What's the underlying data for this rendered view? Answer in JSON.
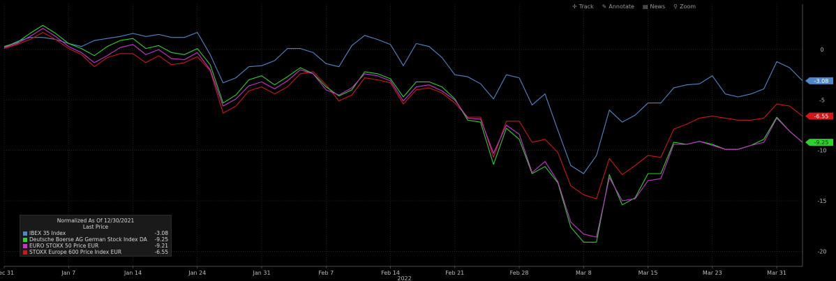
{
  "toolbar": {
    "items": [
      {
        "label": "Track",
        "icon": "crosshair-icon"
      },
      {
        "label": "Annotate",
        "icon": "pencil-icon"
      },
      {
        "label": "News",
        "icon": "news-icon"
      },
      {
        "label": "Zoom",
        "icon": "magnifier-icon"
      }
    ]
  },
  "legend": {
    "title": "Normalized As Of 12/30/2021",
    "subtitle": "Last Price"
  },
  "chart_data": {
    "type": "line",
    "xlabel": "2022",
    "ylabel": "",
    "ylim": [
      -21.5,
      4.5
    ],
    "yticks": [
      0,
      -5,
      -10,
      -15,
      -20
    ],
    "grid": true,
    "legend_position": "bottom-left",
    "x_ticks": [
      {
        "i": 0,
        "label": "Dec 31"
      },
      {
        "i": 5,
        "label": "Jan 7"
      },
      {
        "i": 10,
        "label": "Jan 14"
      },
      {
        "i": 15,
        "label": "Jan 24"
      },
      {
        "i": 20,
        "label": "Jan 31"
      },
      {
        "i": 25,
        "label": "Feb 7"
      },
      {
        "i": 30,
        "label": "Feb 14"
      },
      {
        "i": 35,
        "label": "Feb 21"
      },
      {
        "i": 40,
        "label": "Feb 28"
      },
      {
        "i": 45,
        "label": "Mar 8"
      },
      {
        "i": 50,
        "label": "Mar 15"
      },
      {
        "i": 55,
        "label": "Mar 23"
      },
      {
        "i": 60,
        "label": "Mar 31"
      }
    ],
    "series": [
      {
        "name": "IBEX 35 Index",
        "last": "-3.08",
        "color": "#4f87c9",
        "values": [
          0.2,
          0.8,
          1.2,
          1.2,
          1.0,
          0.6,
          0.3,
          0.9,
          1.1,
          1.3,
          1.6,
          1.3,
          1.5,
          1.2,
          1.2,
          1.7,
          -0.5,
          -3.3,
          -2.8,
          -1.7,
          -1.6,
          -1.1,
          0.1,
          0.1,
          -0.3,
          -1.4,
          -1.7,
          0.4,
          1.4,
          1.0,
          0.5,
          -1.6,
          0.6,
          0.3,
          -0.8,
          -2.5,
          -2.7,
          -3.4,
          -4.9,
          -2.5,
          -2.8,
          -5.5,
          -4.4,
          -8.0,
          -11.5,
          -12.3,
          -10.5,
          -6.0,
          -7.2,
          -6.5,
          -5.3,
          -5.3,
          -3.8,
          -3.5,
          -3.4,
          -2.6,
          -4.4,
          -4.7,
          -4.4,
          -3.9,
          -1.2,
          -1.8,
          -3.1
        ]
      },
      {
        "name": "Deutsche Boerse AG German Stock Index DAX",
        "last": "-9.25",
        "color": "#2ed12e",
        "values": [
          0.3,
          0.7,
          1.6,
          2.4,
          1.6,
          0.6,
          0.1,
          -0.6,
          0.3,
          0.9,
          1.1,
          0.1,
          0.4,
          -0.3,
          -0.5,
          0.1,
          -1.5,
          -5.3,
          -4.5,
          -3.0,
          -2.6,
          -3.5,
          -2.7,
          -1.8,
          -2.4,
          -3.7,
          -4.6,
          -4.0,
          -2.2,
          -2.4,
          -2.9,
          -4.7,
          -3.2,
          -3.2,
          -3.7,
          -4.9,
          -7.0,
          -7.2,
          -11.4,
          -7.8,
          -8.9,
          -12.3,
          -11.6,
          -13.2,
          -17.6,
          -19.1,
          -19.1,
          -12.4,
          -15.4,
          -14.7,
          -12.3,
          -12.3,
          -9.2,
          -9.4,
          -9.1,
          -9.4,
          -9.9,
          -9.9,
          -9.5,
          -8.9,
          -6.7,
          -8.1,
          -9.2
        ]
      },
      {
        "name": "EURO STOXX 50 Price EUR",
        "last": "-9.21",
        "color": "#c736d1",
        "values": [
          0.2,
          0.6,
          1.3,
          2.1,
          1.3,
          0.3,
          -0.3,
          -1.3,
          -0.6,
          0.2,
          0.5,
          -0.5,
          0.0,
          -0.9,
          -1.0,
          -0.3,
          -2.0,
          -5.6,
          -4.9,
          -3.6,
          -3.2,
          -3.9,
          -3.1,
          -2.0,
          -2.4,
          -4.0,
          -4.5,
          -3.8,
          -2.4,
          -2.6,
          -3.1,
          -5.1,
          -3.7,
          -3.5,
          -4.1,
          -5.0,
          -6.8,
          -6.9,
          -10.3,
          -7.5,
          -8.4,
          -12.2,
          -11.1,
          -13.1,
          -17.1,
          -18.3,
          -18.6,
          -12.7,
          -15.0,
          -14.8,
          -13.0,
          -12.8,
          -9.4,
          -9.4,
          -9.1,
          -9.5,
          -9.9,
          -9.9,
          -9.5,
          -9.2,
          -6.8,
          -8.1,
          -9.2
        ]
      },
      {
        "name": "STOXX Europe 600 Price Index EUR",
        "last": "-6.55",
        "color": "#d01818",
        "values": [
          0.1,
          0.5,
          1.0,
          1.7,
          1.0,
          0.1,
          -0.5,
          -1.7,
          -0.8,
          -0.4,
          -0.4,
          -1.3,
          -0.6,
          -1.5,
          -1.3,
          -0.7,
          -2.1,
          -6.3,
          -5.6,
          -4.1,
          -3.7,
          -4.4,
          -3.7,
          -2.4,
          -2.2,
          -3.5,
          -5.1,
          -4.5,
          -2.8,
          -3.0,
          -3.3,
          -5.4,
          -4.0,
          -3.8,
          -4.3,
          -5.3,
          -6.7,
          -6.7,
          -10.7,
          -7.1,
          -7.1,
          -9.2,
          -8.9,
          -10.2,
          -13.5,
          -14.4,
          -14.8,
          -10.8,
          -12.4,
          -11.5,
          -10.5,
          -10.7,
          -7.9,
          -7.4,
          -6.8,
          -6.6,
          -6.8,
          -7.0,
          -7.0,
          -6.8,
          -5.4,
          -5.6,
          -6.6
        ]
      }
    ]
  }
}
